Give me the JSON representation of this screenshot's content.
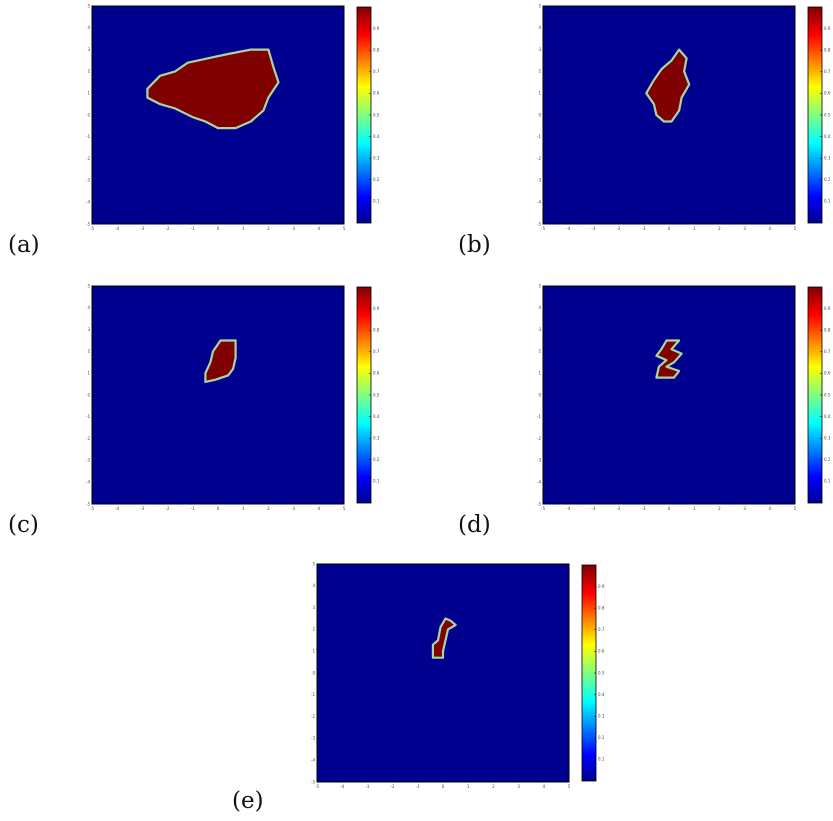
{
  "colors": {
    "field": "#00008f",
    "region": "#800000",
    "contour": "#a8d8a0",
    "axis": "#000000"
  },
  "colormap": "jet",
  "chart_data": [
    {
      "type": "heatmap",
      "panel_label": "(a)",
      "title": "",
      "xlabel": "",
      "ylabel": "",
      "xlim": [
        -5,
        5
      ],
      "ylim": [
        -5,
        5
      ],
      "x_ticks": [
        "-5",
        "-4",
        "-3",
        "-2",
        "-1",
        "0",
        "1",
        "2",
        "3",
        "4",
        "5"
      ],
      "y_ticks": [
        "5",
        "4",
        "3",
        "2",
        "1",
        "0",
        "-1",
        "-2",
        "-3",
        "-4",
        "-5"
      ],
      "colorbar": {
        "range": [
          0,
          1
        ],
        "ticks": [
          "0.1",
          "0.2",
          "0.3",
          "0.4",
          "0.5",
          "0.6",
          "0.7",
          "0.8",
          "0.9"
        ]
      },
      "field_value": 0,
      "region_value": 1,
      "region_boundary": [
        [
          -2.8,
          1.2
        ],
        [
          -2.3,
          1.8
        ],
        [
          -1.7,
          2.0
        ],
        [
          -1.2,
          2.4
        ],
        [
          -0.4,
          2.6
        ],
        [
          0.4,
          2.8
        ],
        [
          1.3,
          3.0
        ],
        [
          2.0,
          3.0
        ],
        [
          2.2,
          2.2
        ],
        [
          2.4,
          1.5
        ],
        [
          2.0,
          0.8
        ],
        [
          1.8,
          0.2
        ],
        [
          1.3,
          -0.3
        ],
        [
          0.7,
          -0.6
        ],
        [
          0.0,
          -0.6
        ],
        [
          -0.5,
          -0.3
        ],
        [
          -1.0,
          -0.1
        ],
        [
          -1.7,
          0.3
        ],
        [
          -2.3,
          0.5
        ],
        [
          -2.8,
          0.8
        ]
      ]
    },
    {
      "type": "heatmap",
      "panel_label": "(b)",
      "title": "",
      "xlabel": "",
      "ylabel": "",
      "xlim": [
        -5,
        5
      ],
      "ylim": [
        -5,
        5
      ],
      "x_ticks": [
        "-5",
        "-4",
        "-3",
        "-2",
        "-1",
        "0",
        "1",
        "2",
        "3",
        "4",
        "5"
      ],
      "y_ticks": [
        "5",
        "4",
        "3",
        "2",
        "1",
        "0",
        "-1",
        "-2",
        "-3",
        "-4",
        "-5"
      ],
      "colorbar": {
        "range": [
          0,
          1
        ],
        "ticks": [
          "0.1",
          "0.2",
          "0.3",
          "0.4",
          "0.5",
          "0.6",
          "0.7",
          "0.8",
          "0.9"
        ]
      },
      "field_value": 0,
      "region_value": 1,
      "region_boundary": [
        [
          -0.9,
          1.0
        ],
        [
          -0.6,
          1.6
        ],
        [
          -0.3,
          2.1
        ],
        [
          0.1,
          2.5
        ],
        [
          0.4,
          3.0
        ],
        [
          0.7,
          2.6
        ],
        [
          0.6,
          2.0
        ],
        [
          0.8,
          1.4
        ],
        [
          0.5,
          0.8
        ],
        [
          0.4,
          0.2
        ],
        [
          0.1,
          -0.3
        ],
        [
          -0.2,
          -0.3
        ],
        [
          -0.5,
          0.0
        ],
        [
          -0.6,
          0.5
        ]
      ]
    },
    {
      "type": "heatmap",
      "panel_label": "(c)",
      "title": "",
      "xlabel": "",
      "ylabel": "",
      "xlim": [
        -5,
        5
      ],
      "ylim": [
        -5,
        5
      ],
      "x_ticks": [
        "-5",
        "-4",
        "-3",
        "-2",
        "-1",
        "0",
        "1",
        "2",
        "3",
        "4",
        "5"
      ],
      "y_ticks": [
        "5",
        "4",
        "3",
        "2",
        "1",
        "0",
        "-1",
        "-2",
        "-3",
        "-4",
        "-5"
      ],
      "colorbar": {
        "range": [
          0,
          1
        ],
        "ticks": [
          "0.1",
          "0.2",
          "0.3",
          "0.4",
          "0.5",
          "0.6",
          "0.7",
          "0.8",
          "0.9"
        ]
      },
      "field_value": 0,
      "region_value": 1,
      "region_boundary": [
        [
          -0.3,
          1.5
        ],
        [
          -0.2,
          2.0
        ],
        [
          0.1,
          2.5
        ],
        [
          0.7,
          2.5
        ],
        [
          0.7,
          1.7
        ],
        [
          0.6,
          1.2
        ],
        [
          0.4,
          0.9
        ],
        [
          -0.1,
          0.7
        ],
        [
          -0.5,
          0.6
        ],
        [
          -0.5,
          1.0
        ]
      ]
    },
    {
      "type": "heatmap",
      "panel_label": "(d)",
      "title": "",
      "xlabel": "",
      "ylabel": "",
      "xlim": [
        -5,
        5
      ],
      "ylim": [
        -5,
        5
      ],
      "x_ticks": [
        "-5",
        "-4",
        "-3",
        "-2",
        "-1",
        "0",
        "1",
        "2",
        "3",
        "4",
        "5"
      ],
      "y_ticks": [
        "5",
        "4",
        "3",
        "2",
        "1",
        "0",
        "-1",
        "-2",
        "-3",
        "-4",
        "-5"
      ],
      "colorbar": {
        "range": [
          0,
          1
        ],
        "ticks": [
          "0.1",
          "0.2",
          "0.3",
          "0.4",
          "0.5",
          "0.6",
          "0.7",
          "0.8",
          "0.9"
        ]
      },
      "field_value": 0,
      "region_value": 1,
      "region_boundary": [
        [
          -0.3,
          2.1
        ],
        [
          -0.1,
          2.5
        ],
        [
          0.4,
          2.5
        ],
        [
          0.1,
          2.1
        ],
        [
          0.5,
          1.9
        ],
        [
          0.2,
          1.5
        ],
        [
          -0.1,
          1.3
        ],
        [
          0.4,
          1.1
        ],
        [
          0.2,
          0.8
        ],
        [
          -0.5,
          0.8
        ],
        [
          -0.4,
          1.3
        ],
        [
          -0.1,
          1.6
        ],
        [
          -0.5,
          1.8
        ]
      ]
    },
    {
      "type": "heatmap",
      "panel_label": "(e)",
      "title": "",
      "xlabel": "",
      "ylabel": "",
      "xlim": [
        -5,
        5
      ],
      "ylim": [
        -5,
        5
      ],
      "x_ticks": [
        "-5",
        "-4",
        "-3",
        "-2",
        "-1",
        "0",
        "1",
        "2",
        "3",
        "4",
        "5"
      ],
      "y_ticks": [
        "5",
        "4",
        "3",
        "2",
        "1",
        "0",
        "-1",
        "-2",
        "-3",
        "-4",
        "-5"
      ],
      "colorbar": {
        "range": [
          0,
          1
        ],
        "ticks": [
          "0.1",
          "0.2",
          "0.3",
          "0.4",
          "0.5",
          "0.6",
          "0.7",
          "0.8",
          "0.9"
        ]
      },
      "field_value": 0,
      "region_value": 1,
      "region_boundary": [
        [
          -0.4,
          0.7
        ],
        [
          -0.4,
          1.3
        ],
        [
          -0.2,
          1.5
        ],
        [
          -0.1,
          2.1
        ],
        [
          0.1,
          2.5
        ],
        [
          0.3,
          2.4
        ],
        [
          0.5,
          2.2
        ],
        [
          0.2,
          2.0
        ],
        [
          0.1,
          1.5
        ],
        [
          0.0,
          1.0
        ],
        [
          0.0,
          0.7
        ]
      ]
    }
  ]
}
